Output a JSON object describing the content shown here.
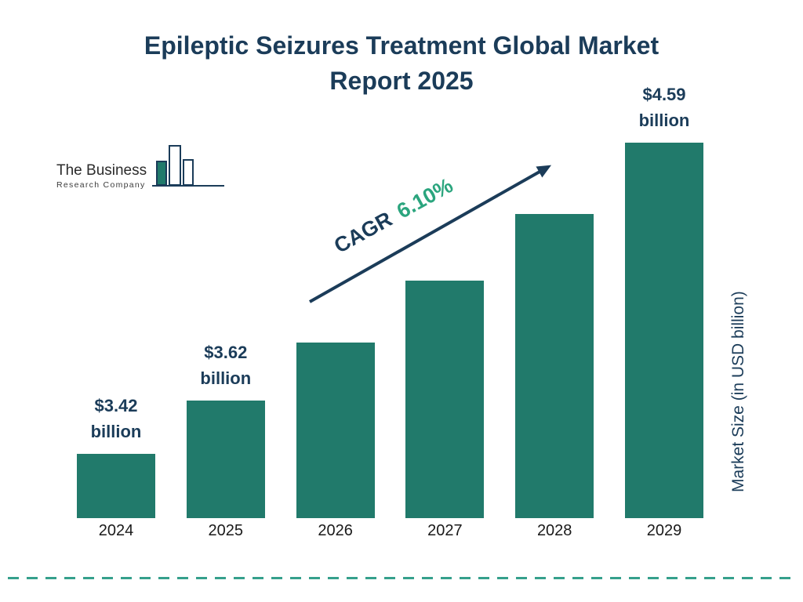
{
  "logo": {
    "line1": "The Business",
    "line2": "Research Company"
  },
  "colors": {
    "navy": "#1B3C59",
    "bar": "#217A6B",
    "accent": "#2BA57E",
    "dash": "#35A08C",
    "tick": "#1A1A1A"
  },
  "chart_data": {
    "type": "bar",
    "title": "Epileptic Seizures Treatment Global Market Report 2025",
    "title_lines": [
      "Epileptic Seizures Treatment Global Market",
      "Report 2025"
    ],
    "categories": [
      "2024",
      "2025",
      "2026",
      "2027",
      "2028",
      "2029"
    ],
    "values": [
      3.42,
      3.62,
      3.84,
      4.07,
      4.32,
      4.59
    ],
    "point_labels": [
      "$3.42 billion",
      "$3.62 billion",
      null,
      null,
      null,
      "$4.59 billion"
    ],
    "unit": "USD billion",
    "ylabel": "Market Size (in USD billion)",
    "xlabel": "",
    "cagr": {
      "label": "CAGR",
      "value": "6.10%"
    },
    "legend": "none",
    "gridlines": false,
    "bar_color": "#217A6B"
  }
}
